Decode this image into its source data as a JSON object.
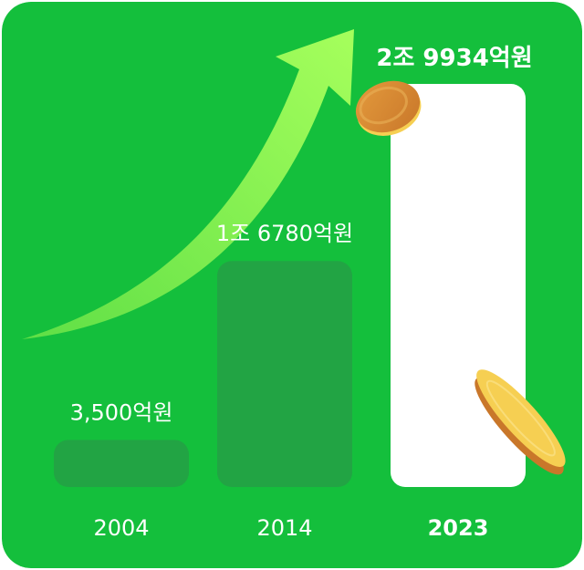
{
  "chart_data": {
    "type": "bar",
    "categories": [
      "2004",
      "2014",
      "2023"
    ],
    "values": [
      3500,
      16780,
      29934
    ],
    "value_labels": [
      "3,500억원",
      "1조 6780억원",
      "2조 9934억원"
    ],
    "unit": "억원",
    "highlight_index": 2,
    "ylim": [
      0,
      29934
    ],
    "grid": false,
    "legend": "none"
  },
  "colors": {
    "background": "#14bf3c",
    "bar": "#22a444",
    "bar_highlight": "#ffffff",
    "arrow": "#8ef64c",
    "coin_face": "#d98a31",
    "coin_rim": "#f6cf52",
    "label": "#ffffff"
  },
  "decor": {
    "arrow": "up-trend-arrow-icon",
    "coins": [
      "coin-icon",
      "coin-icon"
    ]
  }
}
